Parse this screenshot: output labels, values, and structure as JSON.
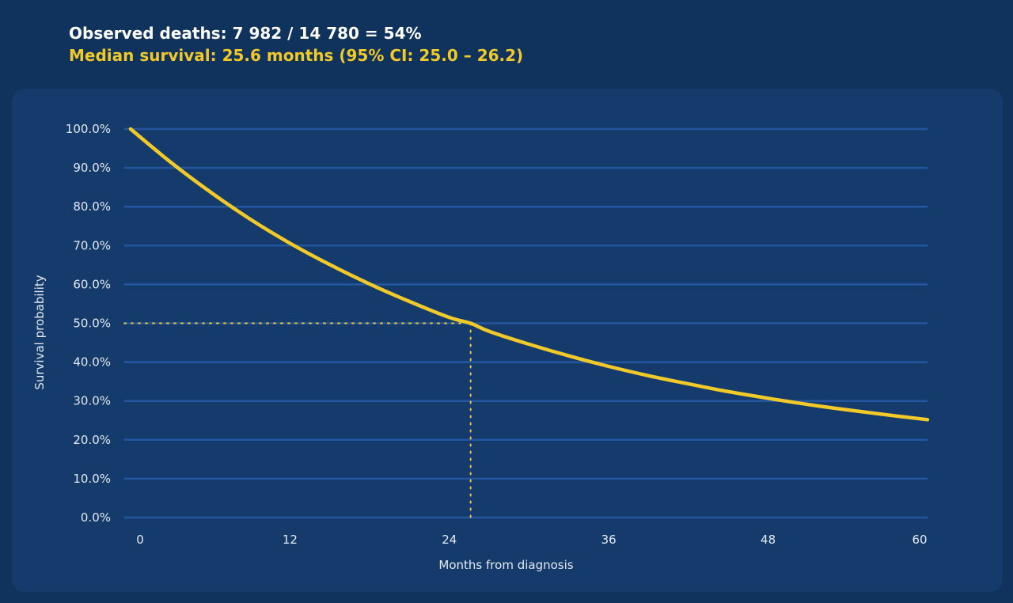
{
  "header": {
    "observed_label": "Observed deaths: 7 982 / 14 780 = 54%",
    "median_label": "Median survival: 25.6 months (95% CI: 25.0 – 26.2)"
  },
  "colors": {
    "background": "#0f335c",
    "panel": "#143b6b",
    "grid": "#2456a0",
    "curve": "#f1c928",
    "text": "#e3e9f2"
  },
  "chart_data": {
    "type": "line",
    "title": "",
    "xlabel": "Months from diagnosis",
    "ylabel": "Survival probability",
    "xlim": [
      0,
      60
    ],
    "ylim": [
      0,
      1
    ],
    "x_ticks": [
      0,
      12,
      24,
      36,
      48,
      60
    ],
    "x_tick_labels": [
      "0",
      "12",
      "24",
      "36",
      "48",
      "60"
    ],
    "y_ticks": [
      0,
      0.1,
      0.2,
      0.3,
      0.4,
      0.5,
      0.6,
      0.7,
      0.8,
      0.9,
      1.0
    ],
    "y_tick_labels": [
      "0.0%",
      "10.0%",
      "20.0%",
      "30.0%",
      "40.0%",
      "50.0%",
      "60.0%",
      "70.0%",
      "80.0%",
      "90.0%",
      "100.0%"
    ],
    "grid": "horizontal",
    "series": [
      {
        "x": [
          0,
          3,
          6,
          9,
          12,
          15,
          18,
          21,
          24,
          25.6,
          27,
          30,
          33,
          36,
          39,
          42,
          45,
          48,
          51,
          54,
          57,
          60
        ],
        "y": [
          1.0,
          0.915,
          0.838,
          0.768,
          0.706,
          0.651,
          0.601,
          0.556,
          0.515,
          0.5,
          0.479,
          0.446,
          0.416,
          0.389,
          0.365,
          0.344,
          0.324,
          0.307,
          0.291,
          0.277,
          0.264,
          0.252
        ]
      }
    ],
    "annotations": {
      "median_x": 25.6,
      "median_y": 0.5,
      "style": "dotted reference lines"
    }
  }
}
